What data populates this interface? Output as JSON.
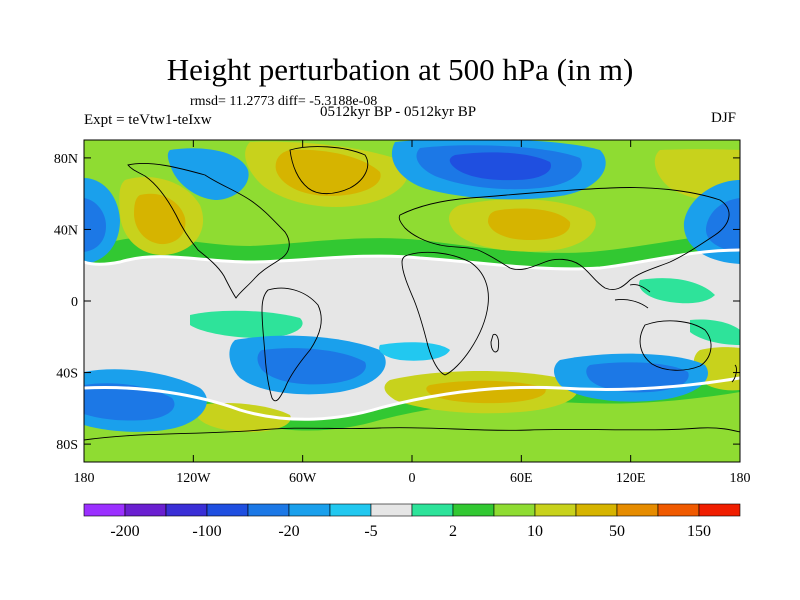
{
  "title": "Height perturbation at 500 hPa (in m)",
  "stats": "rmsd= 11.2773 diff= -5.3188e-08",
  "expt": "Expt = teVtw1-teIxw",
  "subtitle": "0512kyr BP - 0512kyr BP",
  "season": "DJF",
  "map": {
    "projection": "cylindrical equidistant",
    "lon_range": [
      -180,
      180
    ],
    "lat_range": [
      -90,
      90
    ],
    "lat_ticks": [
      {
        "value": 80,
        "label": "80N"
      },
      {
        "value": 40,
        "label": "40N"
      },
      {
        "value": 0,
        "label": "0"
      },
      {
        "value": -40,
        "label": "40S"
      },
      {
        "value": -80,
        "label": "80S"
      }
    ],
    "lon_ticks": [
      {
        "value": -180,
        "label": "180"
      },
      {
        "value": -120,
        "label": "120W"
      },
      {
        "value": -60,
        "label": "60W"
      },
      {
        "value": 0,
        "label": "0"
      },
      {
        "value": 60,
        "label": "60E"
      },
      {
        "value": 120,
        "label": "120E"
      },
      {
        "value": 180,
        "label": "180"
      }
    ]
  },
  "colorbar": {
    "colors": [
      "#9b30ff",
      "#6a1fd0",
      "#3a2fd6",
      "#1f4fe0",
      "#1c78e6",
      "#1aa0ec",
      "#22c8f0",
      "#e6e6e6",
      "#2ee39a",
      "#32c832",
      "#8fdc32",
      "#c8d21c",
      "#d6b400",
      "#e68c00",
      "#f05a00",
      "#f01e00"
    ],
    "labels": [
      {
        "index": 1,
        "text": "-200"
      },
      {
        "index": 3,
        "text": "-100"
      },
      {
        "index": 5,
        "text": "-20"
      },
      {
        "index": 7,
        "text": "-5"
      },
      {
        "index": 9,
        "text": "2"
      },
      {
        "index": 11,
        "text": "10"
      },
      {
        "index": 13,
        "text": "50"
      },
      {
        "index": 15,
        "text": "150"
      }
    ]
  }
}
